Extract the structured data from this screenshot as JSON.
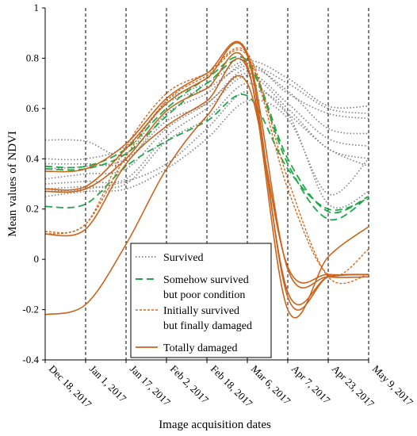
{
  "chart_data": {
    "type": "line",
    "title": "",
    "xlabel": "Image acquisition dates",
    "ylabel": "Mean values of NDVI",
    "ylim": [
      -0.4,
      1.0
    ],
    "yticks": [
      "-0.4",
      "-0.2",
      "0",
      "0.2",
      "0.4",
      "0.6",
      "0.8",
      "1"
    ],
    "x": [
      "Dec 18, 2017",
      "Jan 1, 2017",
      "Jan 17, 2017",
      "Feb 2, 2017",
      "Feb 18, 2017",
      "Mar 6, 2017",
      "Apr 7, 2017",
      "Apr 23, 2017",
      "May 9, 2017"
    ],
    "grid": "vertical dashed lines at each date",
    "legend": {
      "position": "bottom-center",
      "entries": [
        {
          "label": "Survived",
          "color": "#808080",
          "style": "dotted"
        },
        {
          "label": "Somehow survived\nbut poor condition",
          "color": "#1ea84a",
          "style": "dashed"
        },
        {
          "label": "Initially survived\nbut finally damaged",
          "color": "#d2691e",
          "style": "short-dashed"
        },
        {
          "label": "Totally damaged",
          "color": "#c8641e",
          "style": "solid"
        }
      ]
    },
    "series": [
      {
        "group": "Survived",
        "values": [
          0.475,
          0.47,
          0.42,
          0.63,
          0.7,
          0.79,
          0.72,
          0.61,
          0.61
        ]
      },
      {
        "group": "Survived",
        "values": [
          0.4,
          0.4,
          0.45,
          0.62,
          0.68,
          0.77,
          0.7,
          0.6,
          0.58
        ]
      },
      {
        "group": "Survived",
        "values": [
          0.38,
          0.38,
          0.39,
          0.58,
          0.66,
          0.78,
          0.66,
          0.58,
          0.56
        ]
      },
      {
        "group": "Survived",
        "values": [
          0.36,
          0.37,
          0.4,
          0.55,
          0.62,
          0.76,
          0.67,
          0.52,
          0.5
        ]
      },
      {
        "group": "Survived",
        "values": [
          0.32,
          0.34,
          0.36,
          0.52,
          0.62,
          0.74,
          0.62,
          0.48,
          0.45
        ]
      },
      {
        "group": "Survived",
        "values": [
          0.3,
          0.31,
          0.32,
          0.49,
          0.6,
          0.73,
          0.6,
          0.44,
          0.4
        ]
      },
      {
        "group": "Survived",
        "values": [
          0.28,
          0.29,
          0.3,
          0.47,
          0.56,
          0.7,
          0.58,
          0.44,
          0.37
        ]
      },
      {
        "group": "Survived",
        "values": [
          0.27,
          0.28,
          0.31,
          0.38,
          0.52,
          0.67,
          0.58,
          0.22,
          0.27
        ]
      },
      {
        "group": "Survived",
        "values": [
          0.25,
          0.27,
          0.28,
          0.36,
          0.48,
          0.63,
          0.56,
          0.26,
          0.4
        ]
      },
      {
        "group": "Somehow survived but poor condition",
        "values": [
          0.37,
          0.37,
          0.44,
          0.6,
          0.72,
          0.79,
          0.4,
          0.19,
          0.25
        ]
      },
      {
        "group": "Somehow survived but poor condition",
        "values": [
          0.36,
          0.36,
          0.42,
          0.57,
          0.7,
          0.78,
          0.38,
          0.16,
          0.25
        ]
      },
      {
        "group": "Somehow survived but poor condition",
        "values": [
          0.21,
          0.22,
          0.37,
          0.47,
          0.55,
          0.65,
          0.36,
          0.2,
          0.24
        ]
      },
      {
        "group": "Initially survived but finally damaged",
        "values": [
          0.11,
          0.14,
          0.45,
          0.66,
          0.74,
          0.82,
          0.32,
          -0.07,
          -0.06
        ]
      },
      {
        "group": "Initially survived but finally damaged",
        "values": [
          0.1,
          0.14,
          0.41,
          0.63,
          0.73,
          0.81,
          0.28,
          -0.06,
          0.04
        ]
      },
      {
        "group": "Totally damaged",
        "values": [
          0.35,
          0.36,
          0.46,
          0.64,
          0.74,
          0.82,
          -0.04,
          -0.07,
          -0.07
        ]
      },
      {
        "group": "Totally damaged",
        "values": [
          0.28,
          0.29,
          0.44,
          0.62,
          0.72,
          0.81,
          -0.15,
          -0.07,
          -0.06
        ]
      },
      {
        "group": "Totally damaged",
        "values": [
          0.27,
          0.28,
          0.4,
          0.59,
          0.68,
          0.77,
          -0.2,
          0.01,
          0.13
        ]
      },
      {
        "group": "Totally damaged",
        "values": [
          0.1,
          0.12,
          0.38,
          0.53,
          0.63,
          0.76,
          -0.13,
          -0.07,
          -0.06
        ]
      },
      {
        "group": "Totally damaged",
        "values": [
          -0.22,
          -0.18,
          0.06,
          0.36,
          0.57,
          0.7,
          -0.03,
          -0.06,
          -0.06
        ]
      }
    ]
  }
}
